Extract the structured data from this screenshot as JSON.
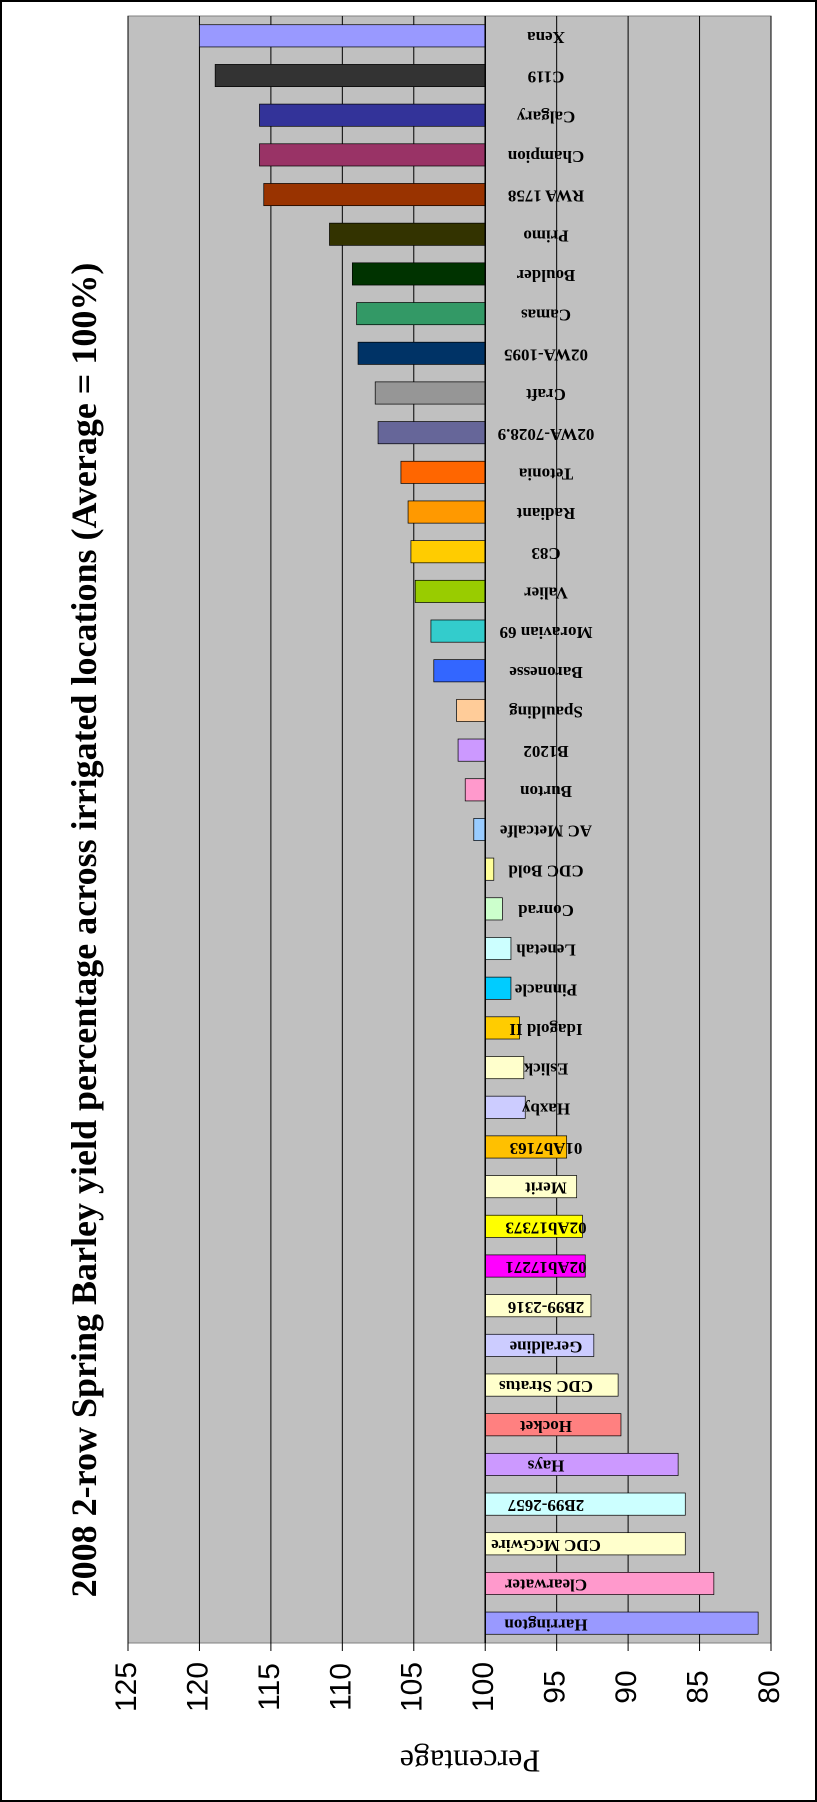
{
  "chart_data": {
    "type": "bar",
    "title": "2008 2-row Spring Barley yield percentage across irrigated locations (Average = 100%)",
    "y_label": "Percentage",
    "categories": [
      "Harrington",
      "Clearwater",
      "CDC McGwire",
      "2B99-2657",
      "Hays",
      "Hocket",
      "CDC Stratus",
      "Geraldine",
      "2B99-2316",
      "02Ab17271",
      "02Ab17373",
      "Merit",
      "01Ab7163",
      "Haxby",
      "Eslick",
      "Idagold II",
      "Pinnacle",
      "Lenetah",
      "Conrad",
      "CDC Bold",
      "AC Metcalfe",
      "Burton",
      "B1202",
      "Spaulding",
      "Baronesse",
      "Moravian 69",
      "Valier",
      "C83",
      "Radiant",
      "Tetonia",
      "02WA-7028.9",
      "Craft",
      "02WA-1095",
      "Camas",
      "Boulder",
      "Primo",
      "RWA 1758",
      "Champion",
      "Calgary",
      "C119",
      "Xena"
    ],
    "values": [
      80.9,
      84.0,
      86.0,
      86.0,
      86.5,
      90.5,
      90.7,
      92.4,
      92.6,
      93.0,
      93.2,
      93.6,
      94.3,
      97.2,
      97.3,
      97.6,
      98.2,
      98.2,
      98.8,
      99.4,
      100.8,
      101.4,
      101.9,
      102.0,
      103.6,
      103.8,
      104.9,
      105.2,
      105.4,
      105.9,
      107.5,
      107.7,
      108.9,
      109.0,
      109.3,
      110.9,
      115.5,
      115.8,
      115.8,
      118.9,
      120.0
    ],
    "colors": [
      "#9999ff",
      "#ff99cc",
      "#ffffcc",
      "#ccffff",
      "#cc99ff",
      "#ff8080",
      "#ffffcc",
      "#ccccff",
      "#ffffcc",
      "#ff00ff",
      "#ffff00",
      "#ffffcc",
      "#ffc000",
      "#ccccff",
      "#ffffcc",
      "#ffcc00",
      "#00ccff",
      "#ccffff",
      "#ccffcc",
      "#ffff99",
      "#99ccff",
      "#ff99cc",
      "#cc99ff",
      "#ffcc99",
      "#3366ff",
      "#33cccc",
      "#99cc00",
      "#ffcc00",
      "#ff9900",
      "#ff6600",
      "#666699",
      "#969696",
      "#003366",
      "#339966",
      "#003300",
      "#333300",
      "#993300",
      "#993366",
      "#333399",
      "#333333",
      "#9999ff"
    ],
    "baseline": 100,
    "ylim": [
      80,
      125
    ],
    "yticks": [
      80,
      85,
      90,
      95,
      100,
      105,
      110,
      115,
      120,
      125
    ],
    "grid": true
  }
}
